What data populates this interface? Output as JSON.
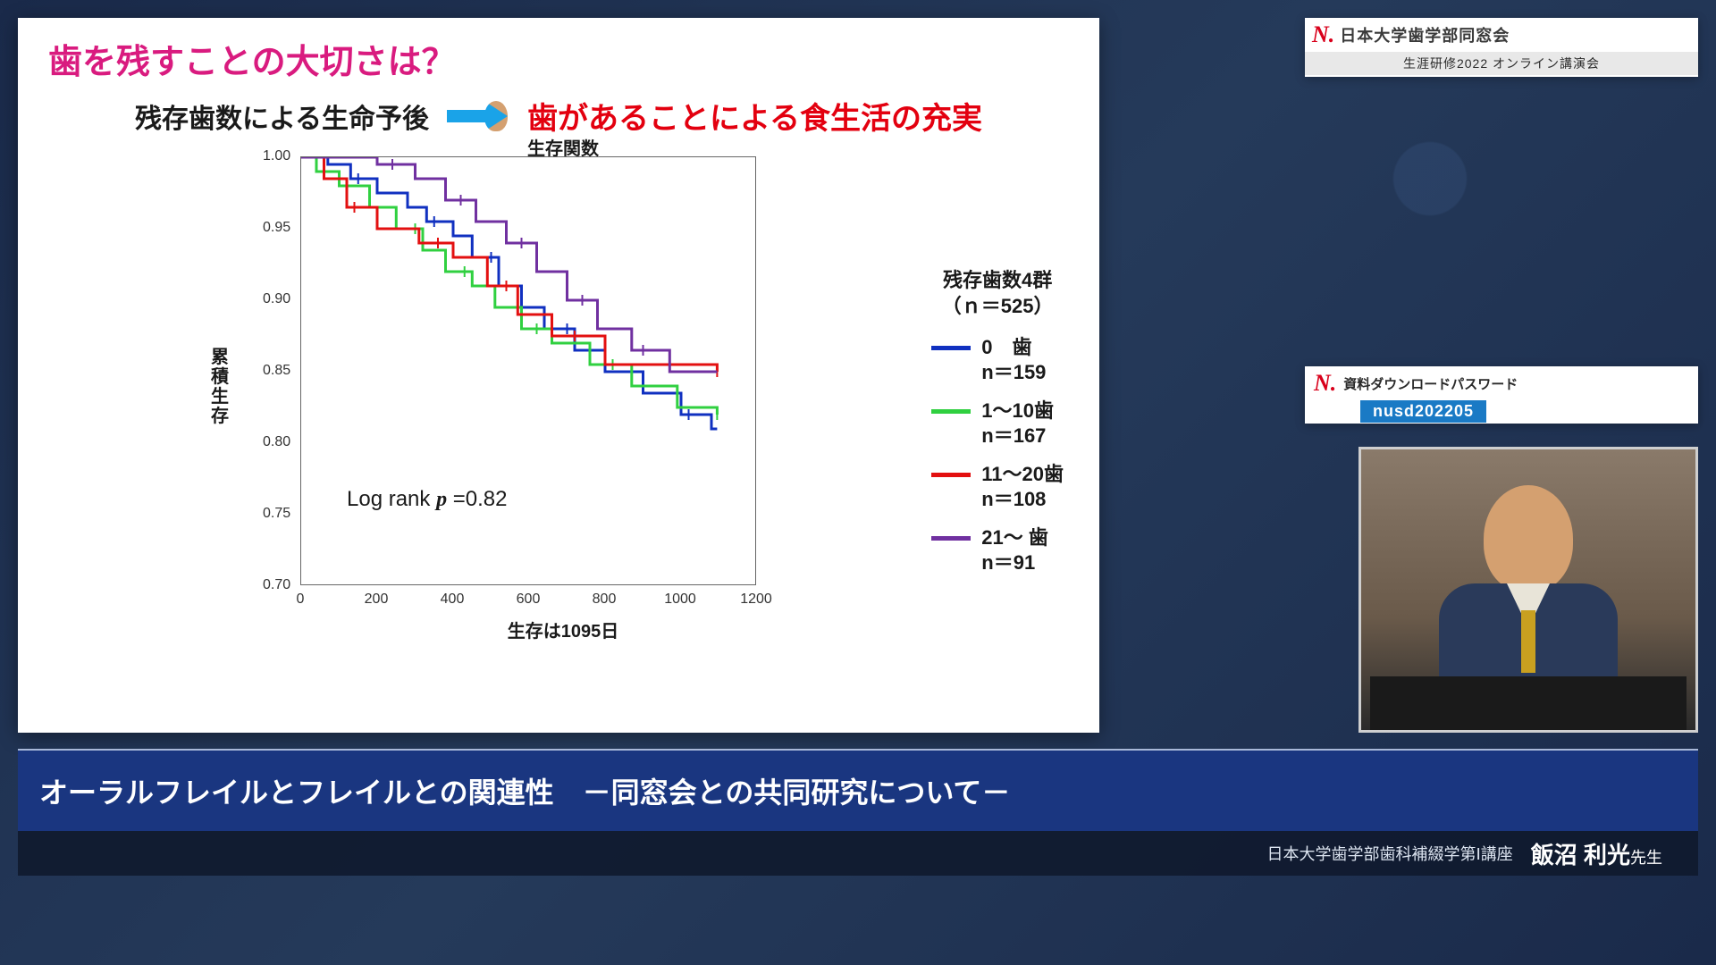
{
  "slide": {
    "title": "歯を残すことの大切さは？",
    "subtitle_left": "残存歯数による生命予後",
    "subtitle_right": "歯があることによる食生活の充実",
    "arrow_color": "#1aa3e8"
  },
  "chart": {
    "type": "survival-step",
    "title_top": "生存関数",
    "y_axis_label": "累積生存",
    "x_axis_label": "生存は1095日",
    "log_rank_prefix": "Log rank ",
    "log_rank_p": "p",
    "log_rank_eq": " =0.82",
    "xlim": [
      0,
      1200
    ],
    "ylim": [
      0.7,
      1.0
    ],
    "xticks": [
      0,
      200,
      400,
      600,
      800,
      1000,
      1200
    ],
    "yticks": [
      0.7,
      0.75,
      0.8,
      0.85,
      0.9,
      0.95,
      1.0
    ],
    "border_color": "#666666",
    "line_width": 3,
    "series": [
      {
        "name": "0teeth",
        "color": "#1030c0",
        "points": [
          [
            0,
            1.0
          ],
          [
            70,
            1.0
          ],
          [
            70,
            0.995
          ],
          [
            130,
            0.995
          ],
          [
            130,
            0.985
          ],
          [
            200,
            0.985
          ],
          [
            200,
            0.975
          ],
          [
            280,
            0.975
          ],
          [
            280,
            0.965
          ],
          [
            330,
            0.965
          ],
          [
            330,
            0.955
          ],
          [
            400,
            0.955
          ],
          [
            400,
            0.945
          ],
          [
            450,
            0.945
          ],
          [
            450,
            0.93
          ],
          [
            520,
            0.93
          ],
          [
            520,
            0.91
          ],
          [
            580,
            0.91
          ],
          [
            580,
            0.895
          ],
          [
            640,
            0.895
          ],
          [
            640,
            0.88
          ],
          [
            720,
            0.88
          ],
          [
            720,
            0.865
          ],
          [
            800,
            0.865
          ],
          [
            800,
            0.85
          ],
          [
            900,
            0.85
          ],
          [
            900,
            0.835
          ],
          [
            1000,
            0.835
          ],
          [
            1000,
            0.82
          ],
          [
            1080,
            0.82
          ],
          [
            1080,
            0.81
          ],
          [
            1095,
            0.81
          ]
        ],
        "censor_ticks": [
          [
            150,
            0.985
          ],
          [
            350,
            0.955
          ],
          [
            500,
            0.93
          ],
          [
            700,
            0.88
          ],
          [
            1020,
            0.82
          ]
        ]
      },
      {
        "name": "1-10teeth",
        "color": "#30d040",
        "points": [
          [
            0,
            1.0
          ],
          [
            40,
            1.0
          ],
          [
            40,
            0.99
          ],
          [
            100,
            0.99
          ],
          [
            100,
            0.98
          ],
          [
            180,
            0.98
          ],
          [
            180,
            0.965
          ],
          [
            250,
            0.965
          ],
          [
            250,
            0.95
          ],
          [
            320,
            0.95
          ],
          [
            320,
            0.935
          ],
          [
            380,
            0.935
          ],
          [
            380,
            0.92
          ],
          [
            450,
            0.92
          ],
          [
            450,
            0.91
          ],
          [
            510,
            0.91
          ],
          [
            510,
            0.895
          ],
          [
            580,
            0.895
          ],
          [
            580,
            0.88
          ],
          [
            660,
            0.88
          ],
          [
            660,
            0.87
          ],
          [
            760,
            0.87
          ],
          [
            760,
            0.855
          ],
          [
            870,
            0.855
          ],
          [
            870,
            0.84
          ],
          [
            990,
            0.84
          ],
          [
            990,
            0.825
          ],
          [
            1095,
            0.825
          ],
          [
            1095,
            0.82
          ]
        ],
        "censor_ticks": [
          [
            120,
            0.98
          ],
          [
            300,
            0.95
          ],
          [
            430,
            0.92
          ],
          [
            620,
            0.88
          ],
          [
            820,
            0.855
          ],
          [
            1095,
            0.82
          ]
        ]
      },
      {
        "name": "11-20teeth",
        "color": "#e31010",
        "points": [
          [
            0,
            1.0
          ],
          [
            60,
            1.0
          ],
          [
            60,
            0.985
          ],
          [
            120,
            0.985
          ],
          [
            120,
            0.965
          ],
          [
            200,
            0.965
          ],
          [
            200,
            0.95
          ],
          [
            310,
            0.95
          ],
          [
            310,
            0.94
          ],
          [
            400,
            0.94
          ],
          [
            400,
            0.93
          ],
          [
            490,
            0.93
          ],
          [
            490,
            0.91
          ],
          [
            570,
            0.91
          ],
          [
            570,
            0.89
          ],
          [
            660,
            0.89
          ],
          [
            660,
            0.875
          ],
          [
            800,
            0.875
          ],
          [
            800,
            0.855
          ],
          [
            1095,
            0.855
          ],
          [
            1095,
            0.85
          ]
        ],
        "censor_ticks": [
          [
            140,
            0.965
          ],
          [
            360,
            0.94
          ],
          [
            540,
            0.91
          ],
          [
            720,
            0.875
          ],
          [
            1095,
            0.85
          ]
        ]
      },
      {
        "name": "21plus",
        "color": "#7030a0",
        "points": [
          [
            0,
            1.0
          ],
          [
            200,
            1.0
          ],
          [
            200,
            0.995
          ],
          [
            300,
            0.995
          ],
          [
            300,
            0.985
          ],
          [
            380,
            0.985
          ],
          [
            380,
            0.97
          ],
          [
            460,
            0.97
          ],
          [
            460,
            0.955
          ],
          [
            540,
            0.955
          ],
          [
            540,
            0.94
          ],
          [
            620,
            0.94
          ],
          [
            620,
            0.92
          ],
          [
            700,
            0.92
          ],
          [
            700,
            0.9
          ],
          [
            780,
            0.9
          ],
          [
            780,
            0.88
          ],
          [
            870,
            0.88
          ],
          [
            870,
            0.865
          ],
          [
            970,
            0.865
          ],
          [
            970,
            0.85
          ],
          [
            1095,
            0.85
          ]
        ],
        "censor_ticks": [
          [
            240,
            0.995
          ],
          [
            420,
            0.97
          ],
          [
            580,
            0.94
          ],
          [
            740,
            0.9
          ],
          [
            900,
            0.865
          ]
        ]
      }
    ]
  },
  "legend": {
    "header_l1": "残存歯数4群",
    "header_l2": "（ｎ＝525）",
    "items": [
      {
        "color": "#1030c0",
        "label_l1": "0　歯",
        "label_l2": "n＝159"
      },
      {
        "color": "#30d040",
        "label_l1": "1～10歯",
        "label_l2": "n＝167"
      },
      {
        "color": "#e31010",
        "label_l1": "11～20歯",
        "label_l2": "n＝108"
      },
      {
        "color": "#7030a0",
        "label_l1": "21～ 歯",
        "label_l2": "n＝91"
      }
    ]
  },
  "top_right": {
    "logo": "N.",
    "line1": "日本大学歯学部同窓会",
    "line2": "生涯研修2022 オンライン講演会"
  },
  "download": {
    "logo": "N.",
    "label": "資料ダウンロードパスワード",
    "code": "nusd202205"
  },
  "footer": {
    "title": "オーラルフレイルとフレイルとの関連性　－同窓会との共同研究について－",
    "affiliation": "日本大学歯学部歯科補綴学第Ⅰ講座",
    "presenter_name": "飯沼 利光",
    "presenter_suffix": "先生"
  }
}
